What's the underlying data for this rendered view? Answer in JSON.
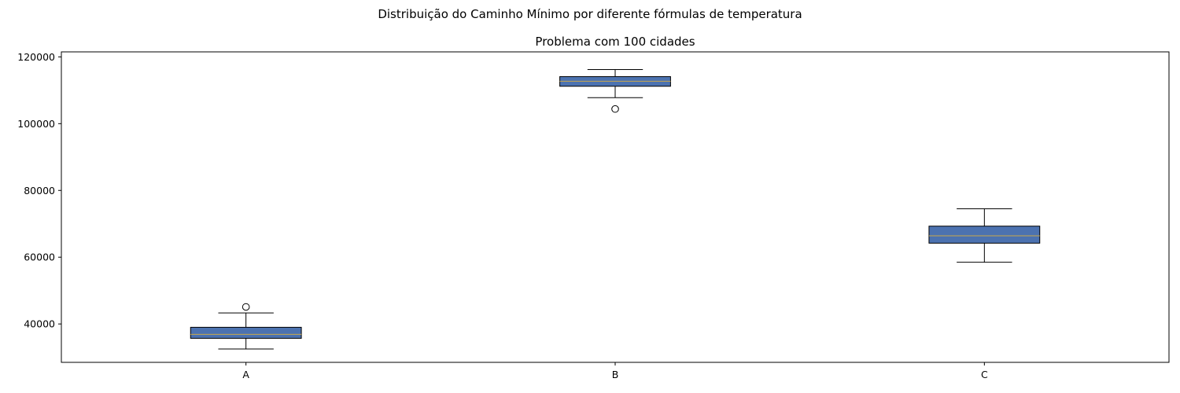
{
  "chart_data": {
    "type": "boxplot",
    "suptitle": "Distribuição do Caminho Mínimo por diferente fórmulas de temperatura",
    "title": "Problema com 100 cidades",
    "xlabel": "",
    "ylabel": "",
    "categories": [
      "A",
      "B",
      "C"
    ],
    "ylim": [
      28500,
      121500
    ],
    "yticks": [
      40000,
      60000,
      80000,
      100000,
      120000
    ],
    "ytick_labels": [
      "40000",
      "60000",
      "80000",
      "100000",
      "120000"
    ],
    "grid": false,
    "box_color": "#4c72b0",
    "median_color": "#c8a84b",
    "boxes": [
      {
        "name": "A",
        "whisker_low": 32500,
        "q1": 35700,
        "median": 36900,
        "q3": 39000,
        "whisker_high": 43300,
        "outliers": [
          45100
        ]
      },
      {
        "name": "B",
        "whisker_low": 107800,
        "q1": 111200,
        "median": 112700,
        "q3": 114100,
        "whisker_high": 116200,
        "outliers": [
          104400
        ]
      },
      {
        "name": "C",
        "whisker_low": 58500,
        "q1": 64200,
        "median": 66400,
        "q3": 69300,
        "whisker_high": 74500,
        "outliers": []
      }
    ]
  }
}
